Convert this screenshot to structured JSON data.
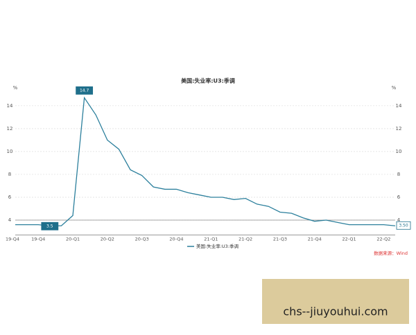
{
  "chart_data": {
    "type": "line",
    "title": "美国:失业率:U3:季调",
    "y_unit": "%",
    "categories": [
      "19-Q4",
      null,
      "19-Q4",
      null,
      null,
      "20-Q1",
      null,
      null,
      "20-Q2",
      null,
      null,
      "20-Q3",
      null,
      null,
      "20-Q4",
      null,
      null,
      "21-Q1",
      null,
      null,
      "21-Q2",
      null,
      null,
      "21-Q3",
      null,
      null,
      "21-Q4",
      null,
      null,
      "22-Q1",
      null,
      null,
      "22-Q2",
      null
    ],
    "series": [
      {
        "name": "美国:失业率:U3:季调",
        "color": "#2b7f9c",
        "values": [
          3.6,
          3.6,
          3.6,
          3.5,
          3.5,
          4.4,
          14.7,
          13.2,
          11.0,
          10.2,
          8.4,
          7.9,
          6.9,
          6.7,
          6.7,
          6.4,
          6.2,
          6.0,
          6.0,
          5.8,
          5.9,
          5.4,
          5.2,
          4.7,
          4.6,
          4.2,
          3.9,
          4.0,
          3.8,
          3.6,
          3.6,
          3.6,
          3.6,
          3.5
        ],
        "value_labels": [
          null,
          null,
          null,
          "3.5",
          null,
          null,
          "14.7",
          null,
          null,
          null,
          null,
          null,
          null,
          null,
          null,
          null,
          null,
          null,
          null,
          null,
          null,
          null,
          null,
          null,
          null,
          null,
          null,
          null,
          null,
          null,
          null,
          null,
          null,
          "3.50"
        ]
      }
    ],
    "ylim": [
      2.7,
      15.2
    ],
    "yticks": [
      4,
      6,
      8,
      10,
      12,
      14
    ],
    "grid": true,
    "reference_line": 4,
    "source": "数据来源：Wind"
  },
  "banner": "chs--jiuyouhui.com"
}
